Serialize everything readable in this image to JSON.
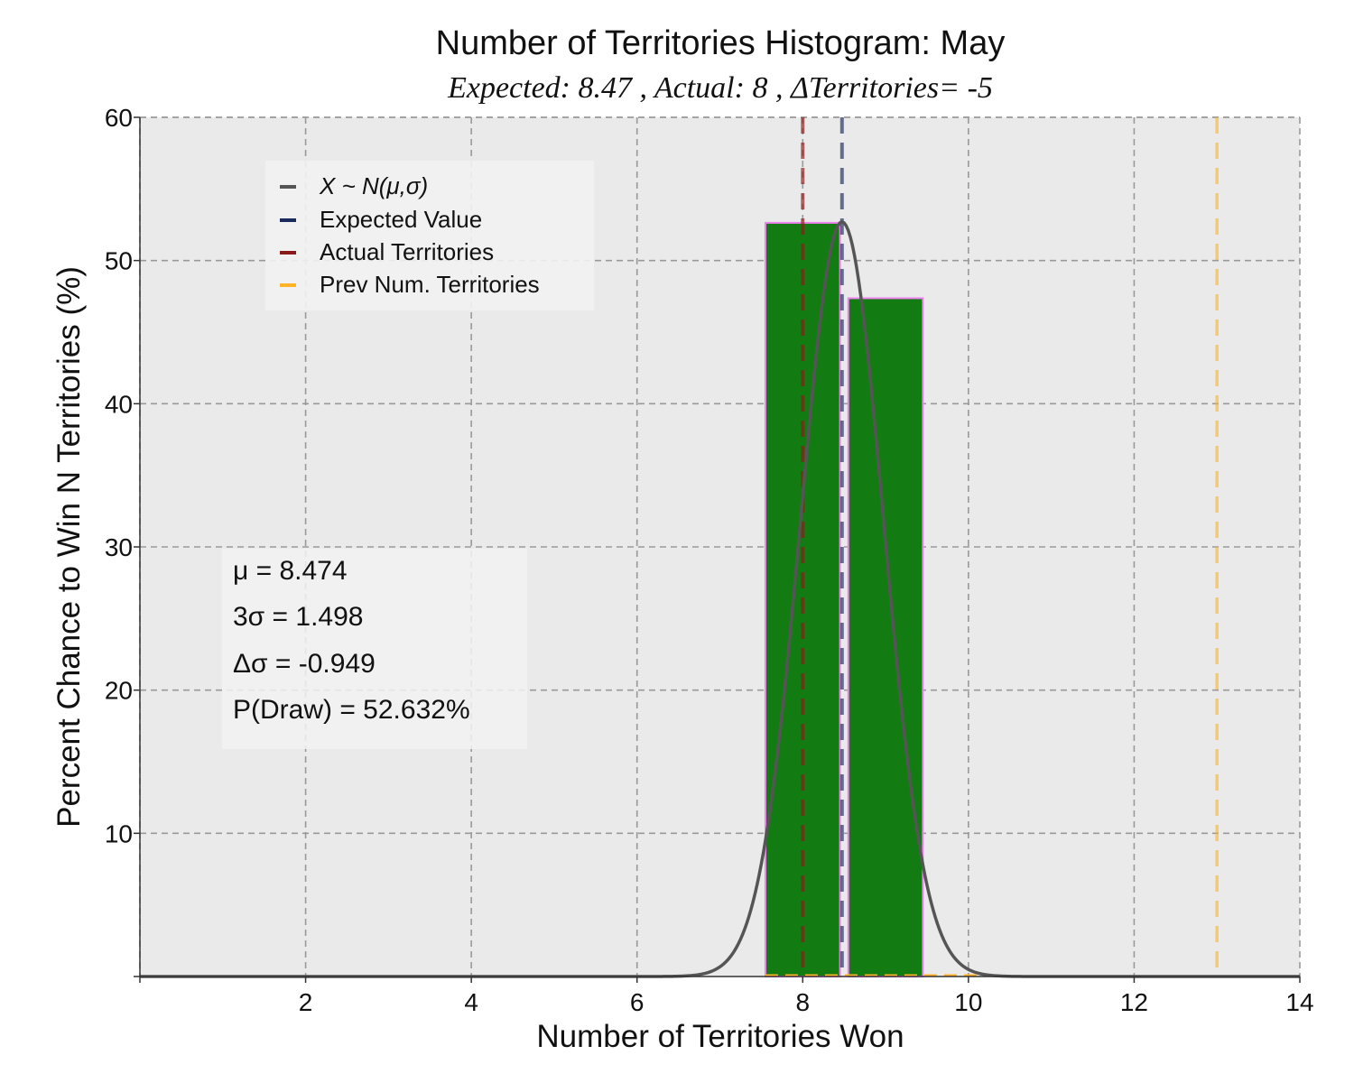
{
  "chart_data": {
    "type": "bar",
    "title": "Number of Territories Histogram: May",
    "subtitle": "Expected: 8.47 , Actual: 8 , ΔTerritories= -5",
    "xlabel": "Number of Territories Won",
    "ylabel": "Percent Chance to Win N Territories (%)",
    "xlim": [
      0,
      14
    ],
    "ylim": [
      0,
      60
    ],
    "xticks": [
      2,
      4,
      6,
      8,
      10,
      12,
      14
    ],
    "yticks": [
      10,
      20,
      30,
      40,
      50,
      60
    ],
    "grid": true,
    "bars": [
      {
        "x": 8,
        "value": 52.632
      },
      {
        "x": 9,
        "value": 47.368
      }
    ],
    "normal_curve": {
      "name": "X ~ N(μ,σ)",
      "mean": 8.474,
      "sigma": 0.4993,
      "peak": 52.7
    },
    "vlines": [
      {
        "name": "Expected Value",
        "x": 8.474,
        "color": "#1a2a5a"
      },
      {
        "name": "Actual Territories",
        "x": 8,
        "color": "#8b1a1a"
      },
      {
        "name": "Prev Num. Territories",
        "x": 13,
        "color": "#ffb326"
      }
    ],
    "legend": {
      "placement": "upper-left",
      "entries": [
        {
          "label": "X ~ N(μ,σ)",
          "color": "#555555"
        },
        {
          "label": "Expected Value",
          "color": "#1a2a5a"
        },
        {
          "label": "Actual Territories",
          "color": "#8b1a1a"
        },
        {
          "label": "Prev Num. Territories",
          "color": "#ffb326"
        }
      ]
    },
    "stats": {
      "mu": "μ = 8.474",
      "three_sigma": "3σ = 1.498",
      "delta_sigma": "Δσ = -0.949",
      "p_draw": "P(Draw) = 52.632%"
    },
    "colors": {
      "bar_fill": "#127c12",
      "bar_edge": "#ee82ee",
      "curve": "#555555",
      "background": "#eaeaea",
      "grid": "#999999"
    }
  }
}
